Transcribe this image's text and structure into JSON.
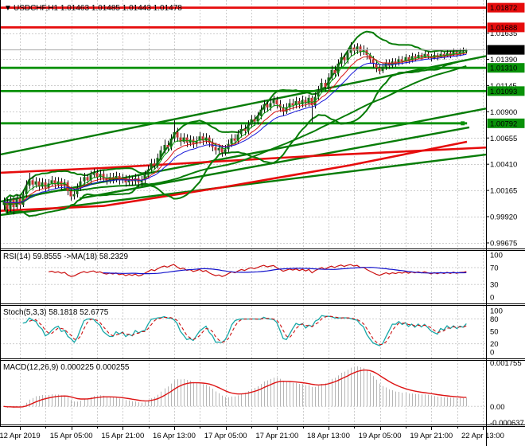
{
  "window": {
    "arrow": "▼",
    "title": "USDCHF,H1 1.01463 1.01485 1.01443 1.01478"
  },
  "colors": {
    "bull": "#156615",
    "bear": "#c53232",
    "wick": "#101010",
    "band_green": "#077c07",
    "trend_green": "#077c07",
    "level_green": "#089108",
    "level_red": "#e60c0c",
    "ma_fast": "#089c08",
    "ma_mid": "#d81616",
    "ma_slow": "#1616d8",
    "rsi_line": "#cc1111",
    "rsi_ma": "#1313cc",
    "stoch_k": "#18a8a8",
    "stoch_d": "#cc1111",
    "macd_hist": "#b5b5b5",
    "macd_signal": "#dd1414",
    "grid": "#cdcdcd",
    "cur_price_line": "#ababab",
    "badge_black": "#000000",
    "badge_text_light": "#ffffff",
    "badge_text_dark": "#000000"
  },
  "chart_data": {
    "type": "candlestick",
    "symbol": "USDCHF",
    "timeframe": "H1",
    "quote": {
      "open": 1.01463,
      "high": 1.01485,
      "low": 1.01443,
      "close": 1.01478
    },
    "current_price": 1.01478,
    "y_ticks": [
      1.01635,
      1.0139,
      1.01145,
      1.009,
      1.00655,
      1.0041,
      1.00165,
      0.9992,
      0.99675
    ],
    "x_labels": [
      "12 Apr 2019",
      "15 Apr 05:00",
      "15 Apr 21:00",
      "16 Apr 13:00",
      "17 Apr 05:00",
      "17 Apr 21:00",
      "18 Apr 13:00",
      "19 Apr 05:00",
      "19 Apr 21:00",
      "22 Apr 13:00"
    ],
    "levels": [
      {
        "price": 1.01872,
        "kind": "resistance",
        "color": "red",
        "x_end": 1.0
      },
      {
        "price": 1.01688,
        "kind": "resistance",
        "color": "red",
        "x_end": 1.0
      },
      {
        "price": 1.0131,
        "kind": "support",
        "color": "green",
        "x_end": 1.0
      },
      {
        "price": 1.01093,
        "kind": "support",
        "color": "green",
        "x_end": 1.0
      },
      {
        "price": 1.00792,
        "kind": "support",
        "color": "green",
        "x_end": 0.961,
        "end_marker": true
      }
    ],
    "trendlines": [
      {
        "pts": [
          [
            0,
            1.005
          ],
          [
            611,
            1.0142
          ]
        ]
      },
      {
        "pts": [
          [
            0,
            1.0006
          ],
          [
            611,
            1.0093
          ]
        ]
      },
      {
        "pts": [
          [
            100,
            1.0009
          ],
          [
            590,
            1.00754
          ]
        ]
      },
      {
        "pts": [
          [
            0,
            0.99935
          ],
          [
            611,
            1.005
          ]
        ]
      }
    ],
    "red_lines": [
      {
        "pts": [
          [
            0,
            1.0033
          ],
          [
            130,
            1.00375
          ],
          [
            410,
            1.00494
          ],
          [
            660,
            1.00583
          ]
        ]
      },
      {
        "pts": [
          [
            0,
            0.99975
          ],
          [
            130,
            1.0002
          ],
          [
            280,
            1.00195
          ],
          [
            440,
            1.004
          ],
          [
            587,
            1.0062
          ]
        ]
      }
    ],
    "panels": {
      "rsi": {
        "label": "RSI(14) 59.8555  ->MA(18) 58.2329",
        "value": 59.8555,
        "ma_value": 58.2329,
        "ticks": [
          100,
          70,
          30,
          0
        ],
        "dashed_levels": [
          70,
          30
        ]
      },
      "stoch": {
        "label": "Stoch(5,3,3) 58.1818 52.6775",
        "k_value": 58.1818,
        "d_value": 52.6775,
        "ticks": [
          100,
          80,
          50,
          20,
          0
        ],
        "dashed_levels": [
          80,
          20
        ]
      },
      "macd": {
        "label": "MACD(12,26,9) 0.000225 0.000255",
        "value": 0.000225,
        "signal_value": 0.000255,
        "ticks": [
          {
            "text": "0.001755",
            "v": 0.001755
          },
          {
            "text": "0.00",
            "v": 0.0
          },
          {
            "text": "-0.000637",
            "v": -0.000637
          }
        ]
      }
    },
    "candles": [
      [
        1.0003,
        1.001,
        0.9998,
        1.0006
      ],
      [
        1.0006,
        1.0009,
        0.9995,
        0.9999
      ],
      [
        0.9999,
        1.0011,
        0.9996,
        1.0008
      ],
      [
        1.0008,
        1.001,
        0.9994,
        1.0001
      ],
      [
        1.0001,
        1.0013,
        0.9999,
        1.0009
      ],
      [
        1.0009,
        1.0012,
        0.9999,
        1.0003
      ],
      [
        1.0003,
        1.0017,
        1.0001,
        1.0013
      ],
      [
        1.0013,
        1.0026,
        1.001,
        1.0021
      ],
      [
        1.0021,
        1.0033,
        1.0018,
        1.0026
      ],
      [
        1.0026,
        1.003,
        1.0017,
        1.0022
      ],
      [
        1.0022,
        1.0029,
        1.0019,
        1.0025
      ],
      [
        1.0025,
        1.0028,
        1.0016,
        1.002
      ],
      [
        1.002,
        1.0028,
        1.0018,
        1.0024
      ],
      [
        1.0024,
        1.0027,
        1.0015,
        1.0019
      ],
      [
        1.0019,
        1.0027,
        1.0016,
        1.0023
      ],
      [
        1.0023,
        1.003,
        1.002,
        1.0026
      ],
      [
        1.0026,
        1.0029,
        1.0018,
        1.0022
      ],
      [
        1.0022,
        1.0029,
        1.0019,
        1.0025
      ],
      [
        1.0025,
        1.0028,
        1.0017,
        1.0021
      ],
      [
        1.0021,
        1.0027,
        1.0018,
        1.0024
      ],
      [
        1.0024,
        1.0026,
        1.0012,
        1.0016
      ],
      [
        1.0016,
        1.002,
        1.0007,
        1.0011
      ],
      [
        1.0011,
        1.0018,
        1.0008,
        1.0013
      ],
      [
        1.0013,
        1.0023,
        1.001,
        1.0019
      ],
      [
        1.0019,
        1.0029,
        1.0016,
        1.0025
      ],
      [
        1.0025,
        1.0033,
        1.0022,
        1.0029
      ],
      [
        1.0029,
        1.0032,
        1.0022,
        1.0026
      ],
      [
        1.0026,
        1.0035,
        1.0023,
        1.0031
      ],
      [
        1.0031,
        1.0037,
        1.0028,
        1.0033
      ],
      [
        1.0033,
        1.0036,
        1.0025,
        1.0029
      ],
      [
        1.0029,
        1.0036,
        1.0026,
        1.0032
      ],
      [
        1.0032,
        1.0035,
        1.0024,
        1.0028
      ],
      [
        1.0028,
        1.0032,
        1.0022,
        1.0026
      ],
      [
        1.0026,
        1.0033,
        1.0023,
        1.0029
      ],
      [
        1.0029,
        1.0033,
        1.0023,
        1.0027
      ],
      [
        1.0027,
        1.0034,
        1.0024,
        1.003
      ],
      [
        1.003,
        1.0033,
        1.0022,
        1.0026
      ],
      [
        1.0026,
        1.0032,
        1.0023,
        1.0028
      ],
      [
        1.0028,
        1.0031,
        1.002,
        1.0024
      ],
      [
        1.0024,
        1.0031,
        1.0021,
        1.0027
      ],
      [
        1.0027,
        1.003,
        1.0021,
        1.0025
      ],
      [
        1.0025,
        1.0032,
        1.0022,
        1.0028
      ],
      [
        1.0028,
        1.0031,
        1.002,
        1.0024
      ],
      [
        1.0024,
        1.003,
        1.002,
        1.0026
      ],
      [
        1.0026,
        1.0035,
        1.0023,
        1.0031
      ],
      [
        1.0031,
        1.004,
        1.0028,
        1.0036
      ],
      [
        1.0036,
        1.0046,
        1.0033,
        1.0042
      ],
      [
        1.0042,
        1.0046,
        1.0036,
        1.004
      ],
      [
        1.004,
        1.0051,
        1.0037,
        1.0047
      ],
      [
        1.0047,
        1.0058,
        1.0044,
        1.0054
      ],
      [
        1.0054,
        1.0064,
        1.0051,
        1.0059
      ],
      [
        1.0059,
        1.0063,
        1.0053,
        1.0057
      ],
      [
        1.0057,
        1.0069,
        1.0054,
        1.0065
      ],
      [
        1.0065,
        1.0082,
        1.0062,
        1.0071
      ],
      [
        1.0071,
        1.0075,
        1.0062,
        1.0066
      ],
      [
        1.0066,
        1.007,
        1.0058,
        1.0062
      ],
      [
        1.0062,
        1.007,
        1.006,
        1.0066
      ],
      [
        1.0066,
        1.0069,
        1.0057,
        1.0061
      ],
      [
        1.0061,
        1.0068,
        1.0058,
        1.0064
      ],
      [
        1.0064,
        1.0067,
        1.0056,
        1.006
      ],
      [
        1.006,
        1.0067,
        1.0057,
        1.0063
      ],
      [
        1.0063,
        1.0071,
        1.006,
        1.0067
      ],
      [
        1.0067,
        1.007,
        1.0059,
        1.0063
      ],
      [
        1.0063,
        1.007,
        1.006,
        1.0066
      ],
      [
        1.0066,
        1.0068,
        1.0057,
        1.0061
      ],
      [
        1.0061,
        1.0065,
        1.0053,
        1.0057
      ],
      [
        1.0057,
        1.0061,
        1.005,
        1.0054
      ],
      [
        1.0054,
        1.006,
        1.0051,
        1.0056
      ],
      [
        1.0056,
        1.0059,
        1.0048,
        1.0052
      ],
      [
        1.0052,
        1.0059,
        1.0049,
        1.0055
      ],
      [
        1.0055,
        1.0064,
        1.0052,
        1.006
      ],
      [
        1.006,
        1.0069,
        1.0057,
        1.0065
      ],
      [
        1.0065,
        1.0069,
        1.0059,
        1.0063
      ],
      [
        1.0063,
        1.0073,
        1.006,
        1.0069
      ],
      [
        1.0069,
        1.0078,
        1.0066,
        1.0074
      ],
      [
        1.0074,
        1.0078,
        1.0068,
        1.0072
      ],
      [
        1.0072,
        1.0082,
        1.0069,
        1.0078
      ],
      [
        1.0078,
        1.0087,
        1.0075,
        1.0083
      ],
      [
        1.0083,
        1.0087,
        1.0077,
        1.0081
      ],
      [
        1.0081,
        1.009,
        1.0078,
        1.0086
      ],
      [
        1.0086,
        1.0096,
        1.0083,
        1.0092
      ],
      [
        1.0092,
        1.0101,
        1.0089,
        1.0097
      ],
      [
        1.0097,
        1.01,
        1.009,
        1.0094
      ],
      [
        1.0094,
        1.0102,
        1.0091,
        1.0098
      ],
      [
        1.0098,
        1.0105,
        1.0095,
        1.0101
      ],
      [
        1.0101,
        1.0104,
        1.0093,
        1.0097
      ],
      [
        1.0097,
        1.0101,
        1.009,
        1.0094
      ],
      [
        1.0094,
        1.0097,
        1.0086,
        1.009
      ],
      [
        1.009,
        1.0098,
        1.0088,
        1.0094
      ],
      [
        1.0094,
        1.0102,
        1.0091,
        1.0098
      ],
      [
        1.0098,
        1.0102,
        1.0092,
        1.0096
      ],
      [
        1.0096,
        1.0104,
        1.0093,
        1.01
      ],
      [
        1.01,
        1.0103,
        1.0093,
        1.0097
      ],
      [
        1.0097,
        1.0105,
        1.0094,
        1.0101
      ],
      [
        1.0101,
        1.0104,
        1.0094,
        1.0098
      ],
      [
        1.0098,
        1.0106,
        1.0095,
        1.0103
      ],
      [
        1.0103,
        1.0105,
        1.008,
        1.0096
      ],
      [
        1.0096,
        1.0108,
        1.0093,
        1.0104
      ],
      [
        1.0104,
        1.0114,
        1.0101,
        1.011
      ],
      [
        1.011,
        1.0121,
        1.0108,
        1.0117
      ],
      [
        1.0117,
        1.012,
        1.0109,
        1.0113
      ],
      [
        1.0113,
        1.0126,
        1.011,
        1.0122
      ],
      [
        1.0122,
        1.0133,
        1.0119,
        1.0129
      ],
      [
        1.0129,
        1.0133,
        1.0122,
        1.0126
      ],
      [
        1.0126,
        1.0139,
        1.0123,
        1.0135
      ],
      [
        1.0135,
        1.0145,
        1.0132,
        1.0141
      ],
      [
        1.0141,
        1.0144,
        1.0134,
        1.0138
      ],
      [
        1.0138,
        1.0149,
        1.0135,
        1.0145
      ],
      [
        1.0145,
        1.0155,
        1.0142,
        1.015
      ],
      [
        1.015,
        1.0153,
        1.0143,
        1.0147
      ],
      [
        1.0147,
        1.0154,
        1.0144,
        1.0151
      ],
      [
        1.0151,
        1.0153,
        1.0142,
        1.0146
      ],
      [
        1.0146,
        1.0152,
        1.0143,
        1.0148
      ],
      [
        1.0148,
        1.015,
        1.0139,
        1.0143
      ],
      [
        1.0143,
        1.0145,
        1.0135,
        1.0139
      ],
      [
        1.0139,
        1.0142,
        1.0131,
        1.0135
      ],
      [
        1.0135,
        1.0138,
        1.0127,
        1.0131
      ],
      [
        1.0131,
        1.0134,
        1.0125,
        1.0128
      ],
      [
        1.0128,
        1.0136,
        1.0126,
        1.0132
      ],
      [
        1.0132,
        1.0139,
        1.0129,
        1.0136
      ],
      [
        1.0136,
        1.0139,
        1.013,
        1.0133
      ],
      [
        1.0133,
        1.014,
        1.0131,
        1.0137
      ],
      [
        1.0137,
        1.014,
        1.0132,
        1.0135
      ],
      [
        1.0135,
        1.0142,
        1.0133,
        1.0139
      ],
      [
        1.0139,
        1.0142,
        1.0134,
        1.0137
      ],
      [
        1.0137,
        1.0144,
        1.0135,
        1.0141
      ],
      [
        1.0141,
        1.0143,
        1.0135,
        1.0138
      ],
      [
        1.0138,
        1.0145,
        1.0136,
        1.0142
      ],
      [
        1.0142,
        1.0144,
        1.0137,
        1.014
      ],
      [
        1.014,
        1.0146,
        1.0139,
        1.0143
      ],
      [
        1.0143,
        1.0145,
        1.0138,
        1.0141
      ],
      [
        1.0141,
        1.0147,
        1.014,
        1.0144
      ],
      [
        1.0144,
        1.0146,
        1.0139,
        1.0142
      ],
      [
        1.0142,
        1.0144,
        1.0137,
        1.014
      ],
      [
        1.014,
        1.0146,
        1.0139,
        1.0143
      ],
      [
        1.0143,
        1.0145,
        1.0138,
        1.0141
      ],
      [
        1.0141,
        1.0147,
        1.014,
        1.0144
      ],
      [
        1.0144,
        1.0146,
        1.0139,
        1.0142
      ],
      [
        1.0142,
        1.0148,
        1.0141,
        1.0145
      ],
      [
        1.0145,
        1.0147,
        1.014,
        1.0143
      ],
      [
        1.0143,
        1.0149,
        1.0142,
        1.0146
      ],
      [
        1.0146,
        1.0148,
        1.0141,
        1.0144
      ],
      [
        1.0144,
        1.0149,
        1.0142,
        1.0146
      ],
      [
        1.0146,
        1.015,
        1.0143,
        1.01463
      ],
      [
        1.01463,
        1.01485,
        1.01443,
        1.01478
      ]
    ]
  }
}
